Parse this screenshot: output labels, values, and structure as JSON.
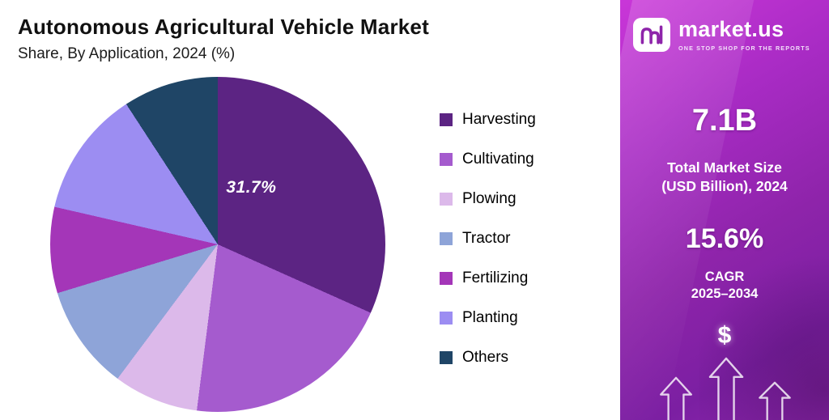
{
  "header": {
    "title": "Autonomous Agricultural Vehicle Market",
    "subtitle": "Share, By Application, 2024 (%)"
  },
  "chart_data": {
    "type": "pie",
    "title": "Autonomous Agricultural Vehicle Market",
    "subtitle": "Share, By Application, 2024 (%)",
    "unit": "%",
    "labels": [
      "Harvesting",
      "Cultivating",
      "Plowing",
      "Tractor",
      "Fertilizing",
      "Planting",
      "Others"
    ],
    "values": [
      31.7,
      20.3,
      8.2,
      10.1,
      8.3,
      12.2,
      9.2
    ],
    "colors": [
      "#5c2483",
      "#a55bce",
      "#dcb9ea",
      "#8ea4d8",
      "#a436b8",
      "#9c8df2",
      "#1f4566"
    ],
    "annotation": "31.7%",
    "annotated_slice": "Harvesting",
    "legend_position": "right",
    "start_angle_deg": 0,
    "direction": "clockwise"
  },
  "promo": {
    "brand_name": "market.us",
    "brand_tagline": "ONE STOP SHOP FOR THE REPORTS",
    "market_size_value": "7.1B",
    "market_size_label_line1": "Total Market Size",
    "market_size_label_line2": "(USD Billion), 2024",
    "cagr_value": "15.6%",
    "cagr_label_line1": "CAGR",
    "cagr_label_line2": "2025–2034",
    "dollar_symbol": "$",
    "gradient_top": "#c936d8",
    "gradient_bottom": "#7b1fa2"
  }
}
